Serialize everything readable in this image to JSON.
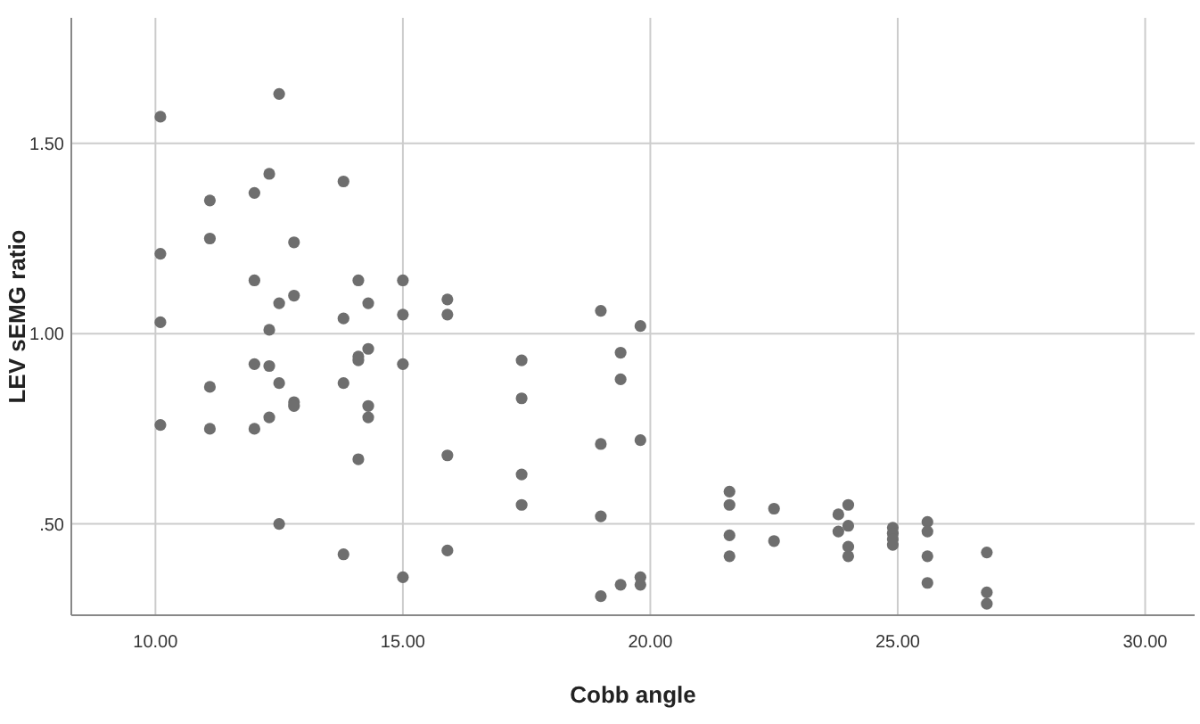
{
  "chart_data": {
    "type": "scatter",
    "xlabel": "Cobb angle",
    "ylabel": "LEV sEMG ratio",
    "xlim": [
      8.3,
      31
    ],
    "ylim": [
      0.26,
      1.83
    ],
    "xticks": [
      {
        "value": 10,
        "label": "10.00"
      },
      {
        "value": 15,
        "label": "15.00"
      },
      {
        "value": 20,
        "label": "20.00"
      },
      {
        "value": 25,
        "label": "25.00"
      },
      {
        "value": 30,
        "label": "30.00"
      }
    ],
    "yticks": [
      {
        "value": 0.5,
        "label": ".50"
      },
      {
        "value": 1,
        "label": "1.00"
      },
      {
        "value": 1.5,
        "label": "1.50"
      }
    ],
    "grid": true,
    "marker": "circle",
    "series": [
      {
        "color": "#6e6e6e",
        "x": [
          10.1,
          10.1,
          10.1,
          10.1,
          11.1,
          11.1,
          11.1,
          11.1,
          12,
          12,
          12,
          12,
          12.3,
          12.3,
          12.3,
          12.3,
          12.5,
          12.5,
          12.5,
          12.5,
          12.8,
          12.8,
          12.8,
          12.8,
          13.8,
          13.8,
          13.8,
          13.8,
          14.1,
          14.1,
          14.1,
          14.1,
          14.3,
          14.3,
          14.3,
          14.3,
          15,
          15,
          15,
          15,
          15.9,
          15.9,
          15.9,
          15.9,
          17.4,
          17.4,
          17.4,
          17.4,
          19,
          19,
          19,
          19,
          19.4,
          19.4,
          19.4,
          19.8,
          19.8,
          19.8,
          19.8,
          21.6,
          21.6,
          21.6,
          21.6,
          22.5,
          22.5,
          23.8,
          23.8,
          24,
          24,
          24,
          24,
          24.9,
          24.9,
          24.9,
          24.9,
          25.6,
          25.6,
          25.6,
          25.6,
          26.8,
          26.8,
          26.8
        ],
        "values": [
          1.57,
          1.21,
          1.03,
          0.76,
          1.35,
          1.25,
          0.86,
          0.75,
          1.37,
          1.14,
          0.92,
          0.75,
          1.42,
          1.01,
          0.915,
          0.78,
          1.63,
          1.08,
          0.87,
          0.5,
          1.24,
          1.1,
          0.82,
          0.81,
          1.4,
          1.04,
          0.87,
          0.42,
          1.14,
          0.94,
          0.93,
          0.67,
          1.08,
          0.96,
          0.81,
          0.78,
          1.14,
          1.05,
          0.92,
          0.36,
          1.09,
          1.05,
          0.68,
          0.43,
          0.93,
          0.83,
          0.63,
          0.55,
          1.06,
          0.71,
          0.52,
          0.31,
          0.95,
          0.88,
          0.34,
          1.02,
          0.72,
          0.36,
          0.34,
          0.585,
          0.55,
          0.47,
          0.415,
          0.54,
          0.455,
          0.525,
          0.48,
          0.55,
          0.495,
          0.44,
          0.415,
          0.49,
          0.475,
          0.46,
          0.445,
          0.505,
          0.48,
          0.415,
          0.345,
          0.425,
          0.32,
          0.29
        ]
      }
    ]
  }
}
